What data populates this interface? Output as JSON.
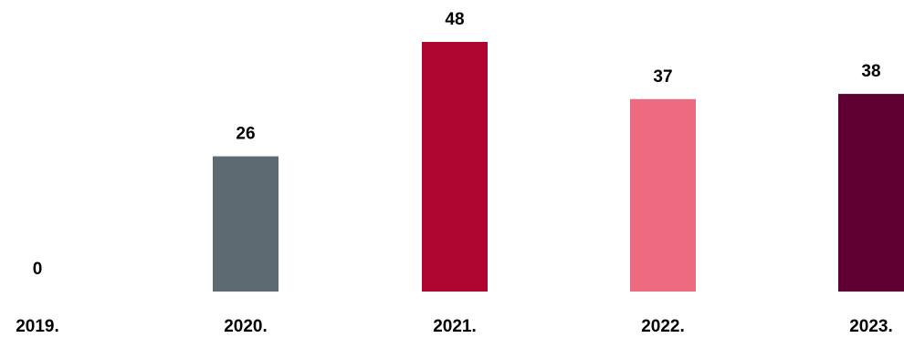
{
  "chart_data": {
    "type": "bar",
    "categories": [
      "2019.",
      "2020.",
      "2021.",
      "2022.",
      "2023."
    ],
    "values": [
      0,
      26,
      48,
      37,
      38
    ],
    "data_labels": [
      "0",
      "26",
      "48",
      "37",
      "38"
    ],
    "bar_colors": [
      "#5d6a72",
      "#5d6a72",
      "#ae0530",
      "#ee6a80",
      "#600032"
    ],
    "title": "",
    "xlabel": "",
    "ylabel": "",
    "ylim": [
      0,
      48
    ],
    "grid": false,
    "legend": "none"
  }
}
